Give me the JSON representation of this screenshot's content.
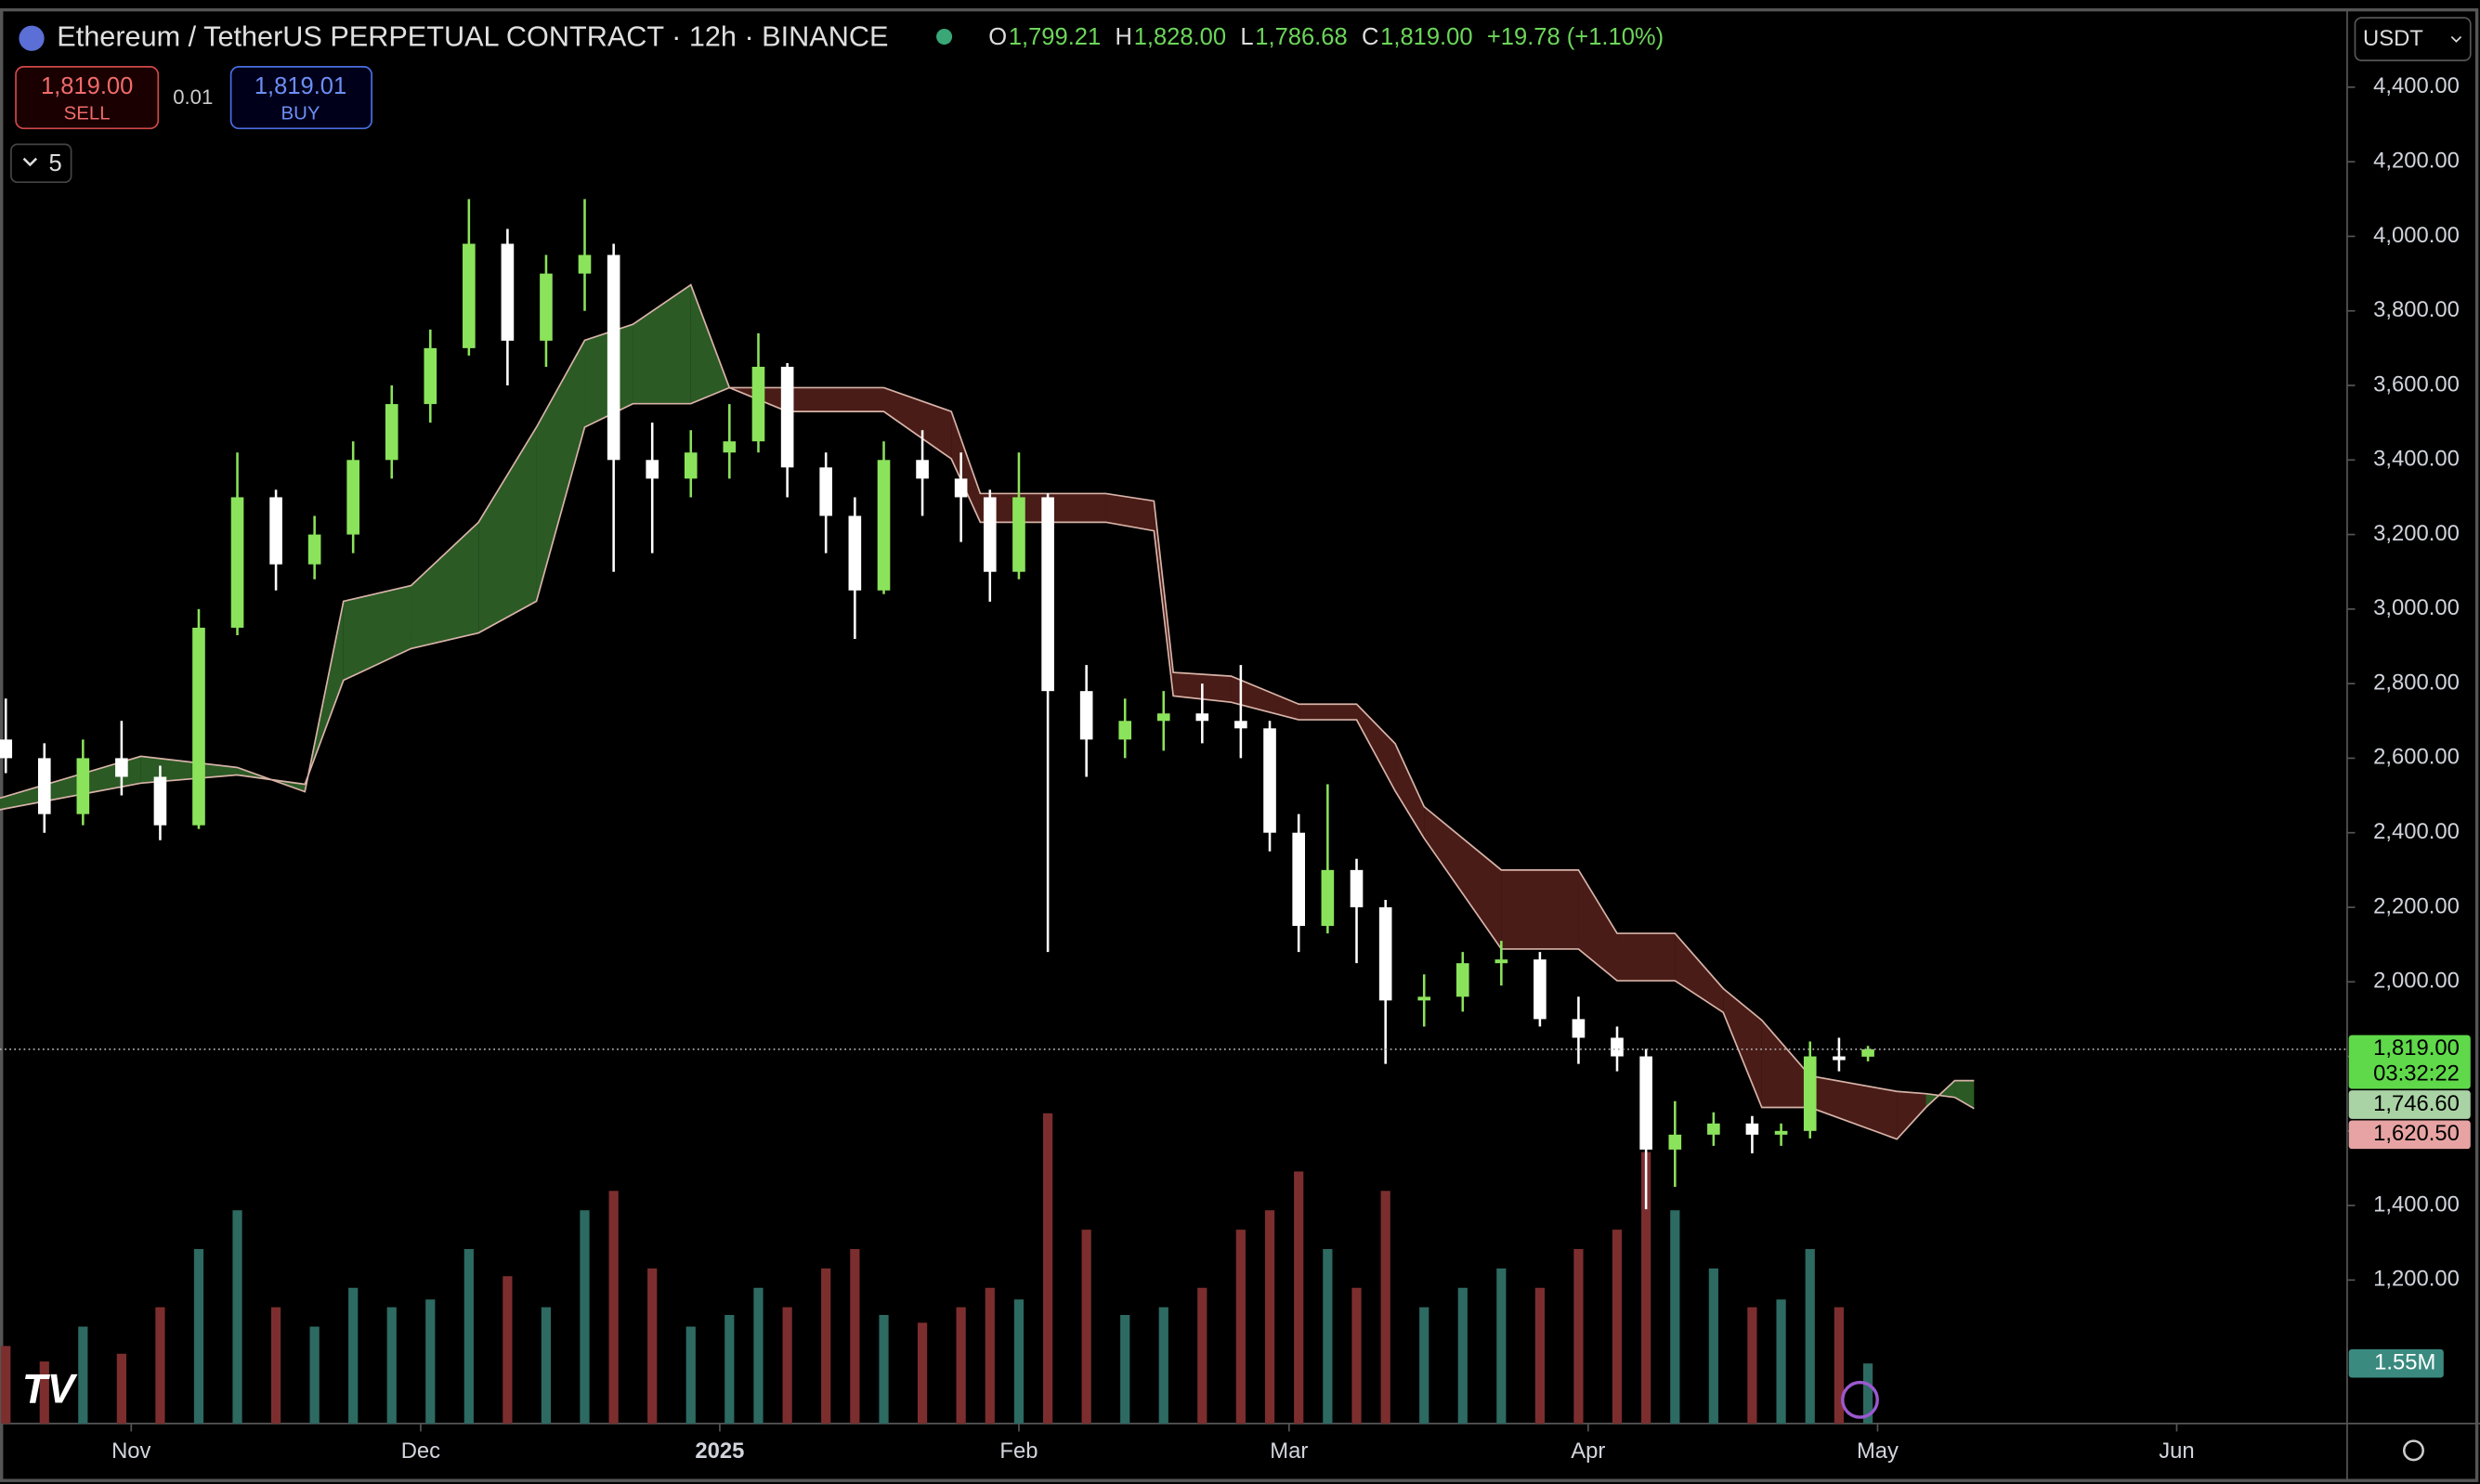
{
  "header": {
    "symbol": "Ethereum / TetherUS PERPETUAL CONTRACT · 12h · BINANCE",
    "ohlc": [
      {
        "key": "O",
        "value": "1,799.21"
      },
      {
        "key": "H",
        "value": "1,828.00"
      },
      {
        "key": "L",
        "value": "1,786.68"
      },
      {
        "key": "C",
        "value": "1,819.00"
      }
    ],
    "change": "+19.78 (+1.10%)",
    "currency": "USDT",
    "indicators_count": "5"
  },
  "trade": {
    "sell_price": "1,819.00",
    "sell_label": "SELL",
    "spread": "0.01",
    "buy_price": "1,819.01",
    "buy_label": "BUY"
  },
  "chart_data": {
    "type": "candlestick",
    "x": [
      -13,
      -9,
      -5,
      -1,
      3,
      7,
      11,
      15,
      19,
      23,
      27,
      31,
      35,
      39,
      43,
      47,
      50,
      54,
      58,
      62,
      65,
      68,
      72,
      75,
      78,
      82,
      86,
      89,
      92,
      95,
      99,
      103,
      107,
      111,
      115,
      118,
      121,
      124,
      127,
      130,
      134,
      138,
      142,
      146,
      150,
      154,
      157,
      160,
      164,
      168,
      171,
      174,
      177,
      180
    ],
    "open": [
      2650,
      2600,
      2450,
      2600,
      2550,
      2420,
      2950,
      3300,
      3120,
      3200,
      3400,
      3550,
      3700,
      3980,
      3720,
      3900,
      3950,
      3400,
      3350,
      3420,
      3450,
      3650,
      3380,
      3250,
      3050,
      3400,
      3350,
      3300,
      3100,
      3300,
      2780,
      2650,
      2700,
      2720,
      2700,
      2680,
      2400,
      2150,
      2300,
      2200,
      1950,
      1960,
      2050,
      2060,
      1900,
      1850,
      1800,
      1550,
      1590,
      1620,
      1590,
      1600,
      1800,
      1799.21
    ],
    "high": [
      2760,
      2640,
      2650,
      2700,
      2580,
      3000,
      3420,
      3320,
      3250,
      3450,
      3600,
      3750,
      4100,
      4020,
      3950,
      4100,
      3980,
      3500,
      3480,
      3550,
      3740,
      3660,
      3420,
      3300,
      3450,
      3480,
      3420,
      3320,
      3420,
      3310,
      2850,
      2760,
      2780,
      2800,
      2850,
      2700,
      2450,
      2530,
      2330,
      2220,
      2020,
      2080,
      2110,
      2080,
      1960,
      1880,
      1820,
      1680,
      1650,
      1640,
      1620,
      1840,
      1850,
      1828
    ],
    "low": [
      2560,
      2400,
      2420,
      2500,
      2380,
      2410,
      2930,
      3050,
      3080,
      3150,
      3350,
      3500,
      3680,
      3600,
      3650,
      3800,
      3100,
      3150,
      3300,
      3350,
      3420,
      3300,
      3150,
      2920,
      3040,
      3250,
      3180,
      3020,
      3080,
      2080,
      2550,
      2600,
      2620,
      2640,
      2600,
      2350,
      2080,
      2130,
      2050,
      1780,
      1880,
      1920,
      1990,
      1880,
      1780,
      1760,
      1390,
      1450,
      1560,
      1540,
      1560,
      1580,
      1760,
      1786.68
    ],
    "close": [
      2600,
      2450,
      2600,
      2550,
      2420,
      2950,
      3300,
      3120,
      3200,
      3400,
      3550,
      3700,
      3980,
      3720,
      3900,
      3950,
      3400,
      3350,
      3420,
      3450,
      3650,
      3380,
      3250,
      3050,
      3400,
      3350,
      3300,
      3100,
      3300,
      2780,
      2650,
      2700,
      2720,
      2700,
      2680,
      2400,
      2150,
      2300,
      2200,
      1950,
      1960,
      2050,
      2060,
      1900,
      1850,
      1800,
      1550,
      1590,
      1620,
      1590,
      1600,
      1800,
      1790,
      1819
    ],
    "volume": [
      2000000,
      1600000,
      2500000,
      1800000,
      3000000,
      4500000,
      5500000,
      3000000,
      2500000,
      3500000,
      3000000,
      3200000,
      4500000,
      3800000,
      3000000,
      5500000,
      6000000,
      4000000,
      2500000,
      2800000,
      3500000,
      3000000,
      4000000,
      4500000,
      2800000,
      2600000,
      3000000,
      3500000,
      3200000,
      8000000,
      5000000,
      2800000,
      3000000,
      3500000,
      5000000,
      5500000,
      6500000,
      4500000,
      3500000,
      6000000,
      3000000,
      3500000,
      4000000,
      3500000,
      4500000,
      5000000,
      7000000,
      5500000,
      4000000,
      3000000,
      3200000,
      4500000,
      3000000,
      1550000
    ],
    "last_volume_label": "1.55M",
    "volume_lim": [
      0,
      36700000
    ],
    "cloud": {
      "x": [
        -14,
        1,
        11,
        18,
        22,
        29,
        36,
        42,
        47,
        52,
        58,
        62,
        68,
        78,
        85,
        88,
        101,
        106,
        108,
        114,
        121,
        127,
        131,
        134,
        142,
        150,
        154,
        160,
        165,
        169,
        174,
        183,
        186,
        189,
        191
      ],
      "span_a": [
        2490,
        2605,
        2575,
        2510,
        3021,
        3063,
        3233,
        3488,
        3721,
        3764,
        3870,
        3594,
        3530,
        3530,
        3403,
        3233,
        3233,
        3210,
        2767,
        2750,
        2703,
        2703,
        2512,
        2385,
        2088,
        2088,
        2003,
        2003,
        1918,
        1663,
        1663,
        1578,
        1663,
        1735,
        1735
      ],
      "span_b": [
        2460,
        2533,
        2555,
        2530,
        2809,
        2894,
        2936,
        3021,
        3488,
        3551,
        3551,
        3594,
        3594,
        3594,
        3530,
        3310,
        3310,
        3290,
        2830,
        2820,
        2745,
        2745,
        2639,
        2470,
        2300,
        2300,
        2130,
        2130,
        1982,
        1897,
        1748,
        1706,
        1700,
        1690,
        1660
      ]
    },
    "xlim": [
      -13.6,
      229.5
    ],
    "xticks": [
      {
        "value": 0,
        "label": "Nov"
      },
      {
        "value": 30,
        "label": "Dec"
      },
      {
        "value": 61,
        "label": "2025"
      },
      {
        "value": 92,
        "label": "Feb"
      },
      {
        "value": 120,
        "label": "Mar"
      },
      {
        "value": 151,
        "label": "Apr"
      },
      {
        "value": 181,
        "label": "May"
      },
      {
        "value": 212,
        "label": "Jun"
      }
    ],
    "ylim": [
      815,
      4633
    ],
    "yticks": [
      {
        "value": 1200,
        "label": "1,200.00"
      },
      {
        "value": 1400,
        "label": "1,400.00"
      },
      {
        "value": 1600,
        "label": "1,600.00"
      },
      {
        "value": 1800,
        "label": "1,800.00"
      },
      {
        "value": 2000,
        "label": "2,000.00"
      },
      {
        "value": 2200,
        "label": "2,200.00"
      },
      {
        "value": 2400,
        "label": "2,400.00"
      },
      {
        "value": 2600,
        "label": "2,600.00"
      },
      {
        "value": 2800,
        "label": "2,800.00"
      },
      {
        "value": 3000,
        "label": "3,000.00"
      },
      {
        "value": 3200,
        "label": "3,200.00"
      },
      {
        "value": 3400,
        "label": "3,400.00"
      },
      {
        "value": 3600,
        "label": "3,600.00"
      },
      {
        "value": 3800,
        "label": "3,800.00"
      },
      {
        "value": 4000,
        "label": "4,000.00"
      },
      {
        "value": 4200,
        "label": "4,200.00"
      },
      {
        "value": 4400,
        "label": "4,400.00"
      }
    ],
    "price_labels": [
      {
        "value": 1819,
        "label": "1,819.00",
        "sublabel": "03:32:22",
        "color": "#5fd94a"
      },
      {
        "value": 1746.6,
        "label": "1,746.60",
        "color": "#a9d3a4"
      },
      {
        "value": 1620.5,
        "label": "1,620.50",
        "color": "#e7a3a3"
      }
    ],
    "up_color": "#8be35c",
    "down_color": "#ffffff",
    "cloud_up_color": "#2b5a25",
    "cloud_down_color": "#4a1c17",
    "cloud_line_color": "#d8b3a8",
    "volume_up_color": "#2d6a62",
    "volume_down_color": "#7c2e2e"
  }
}
